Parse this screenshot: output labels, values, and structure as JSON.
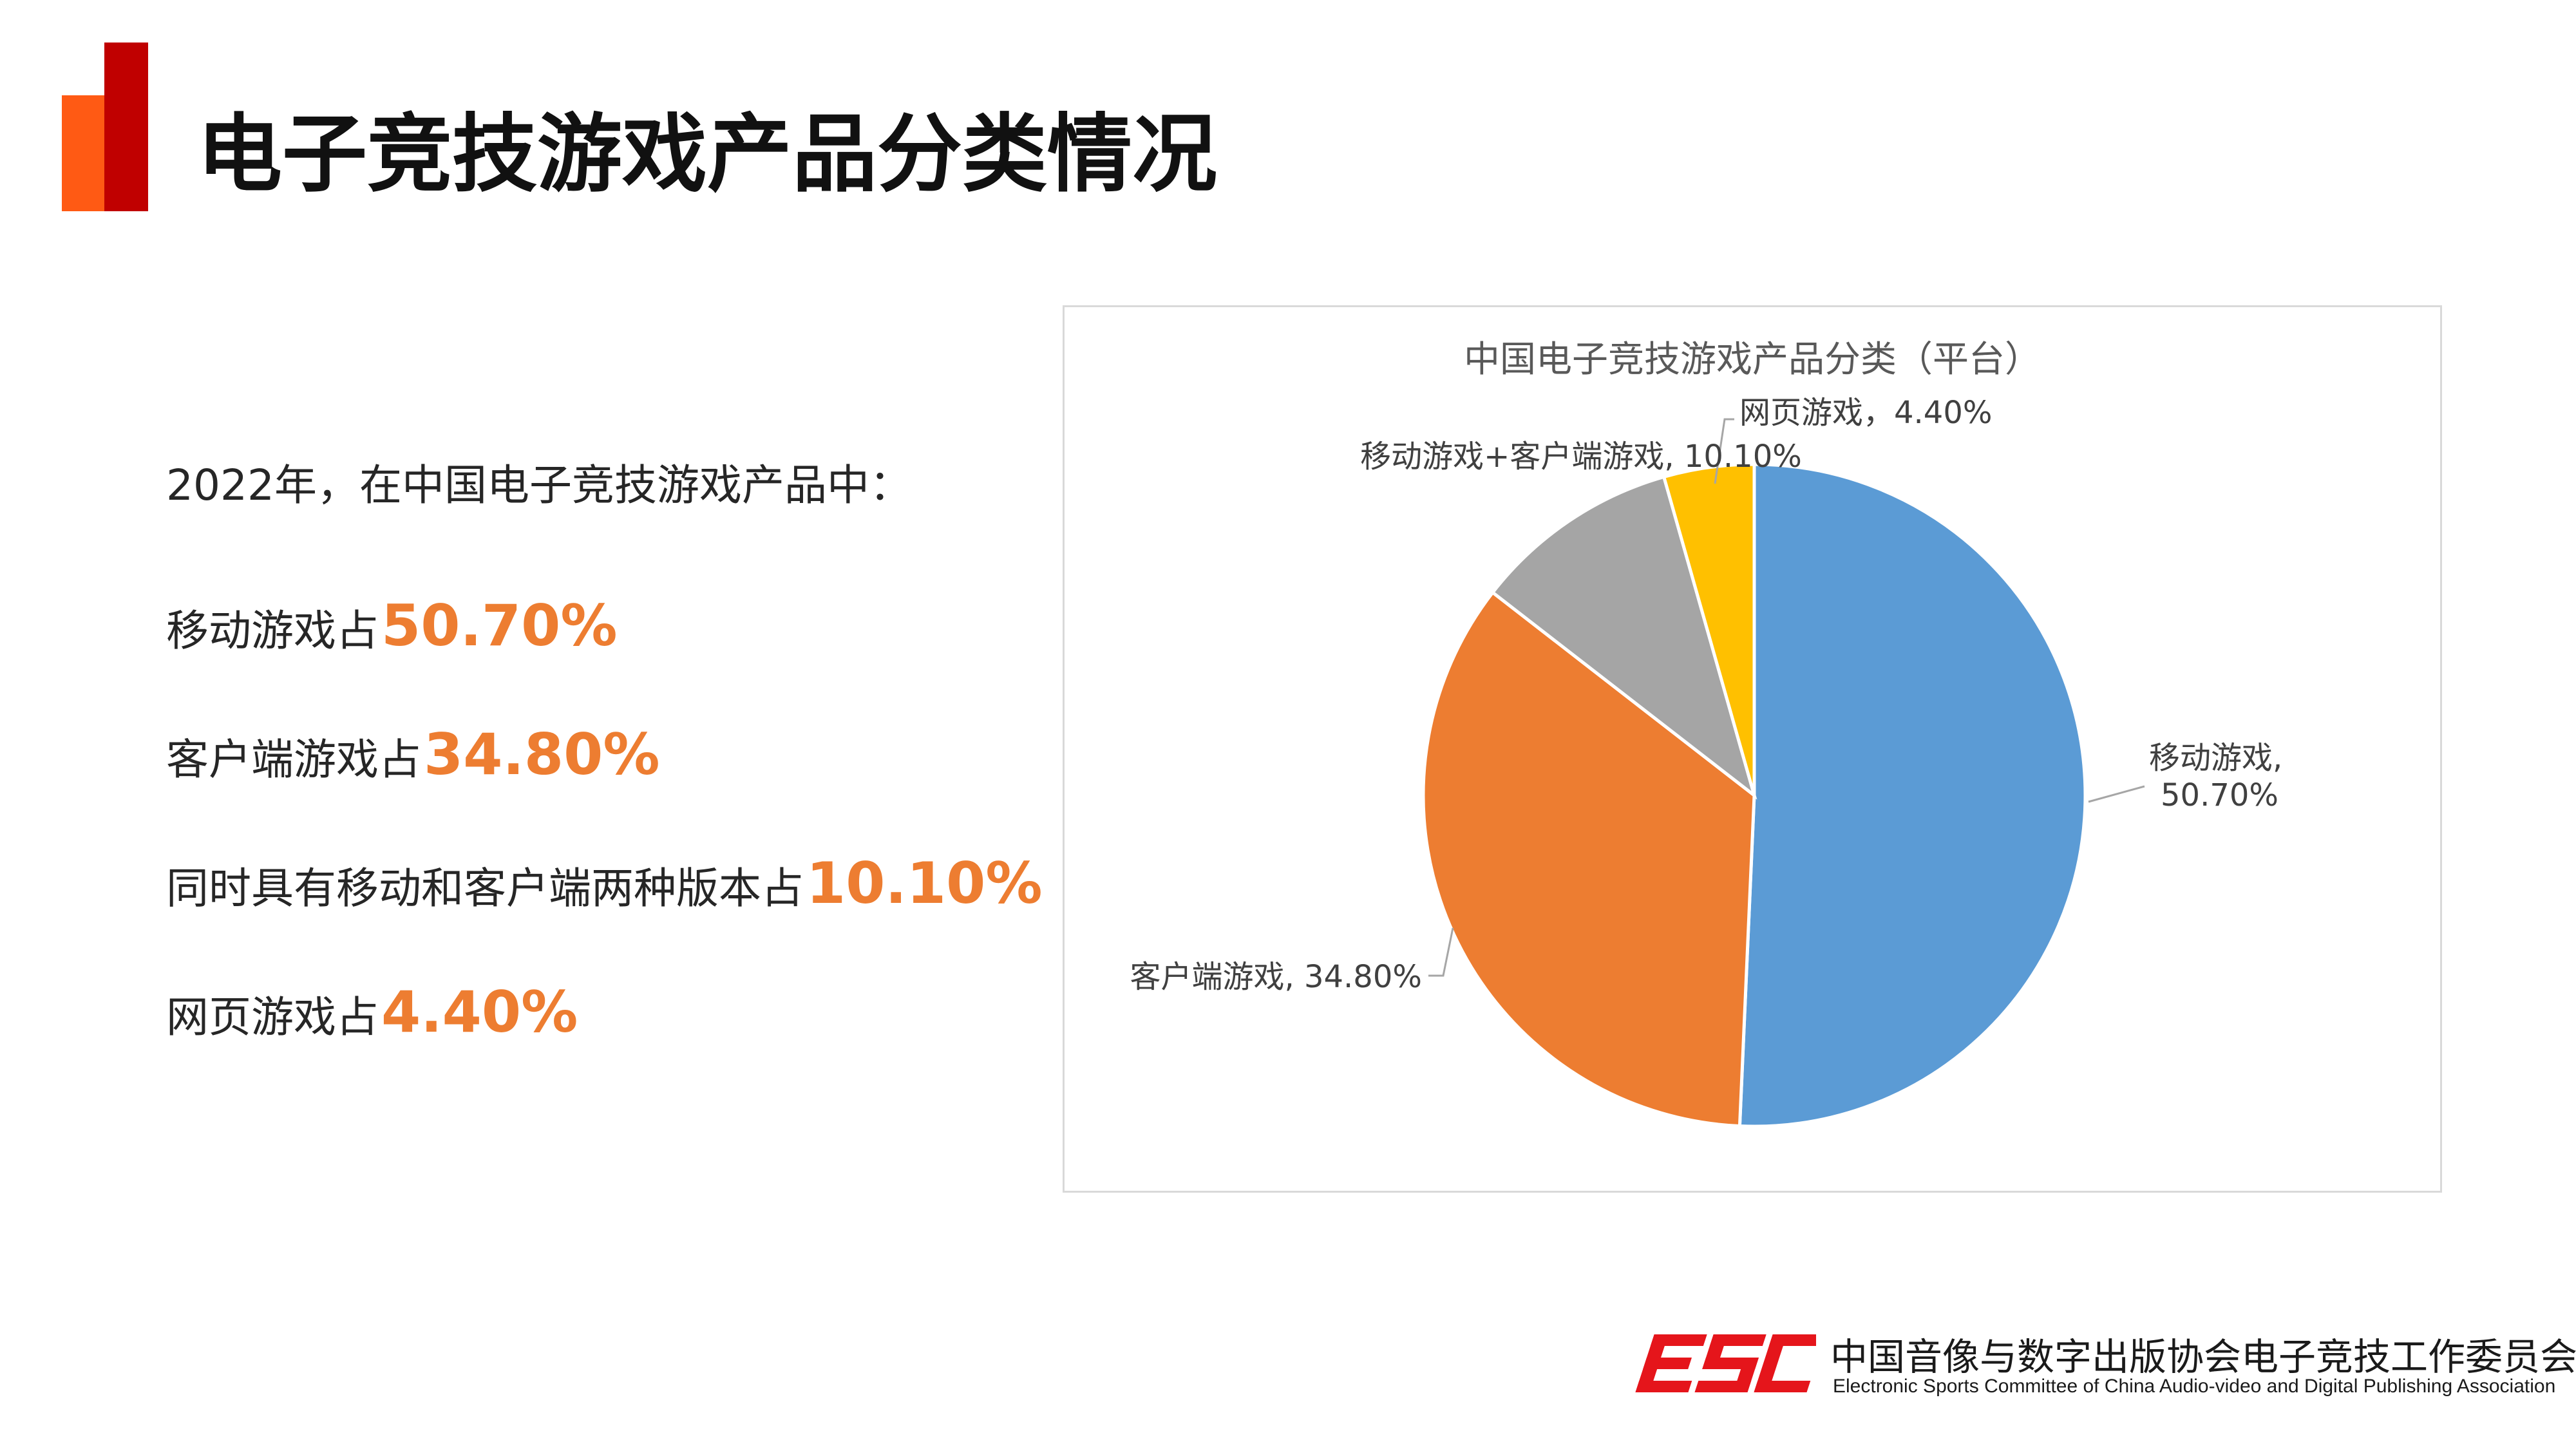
{
  "slide": {
    "title": "电子竞技游戏产品分类情况",
    "accent_colors": {
      "orange": "#FF5A14",
      "red": "#C00000",
      "highlight": "#ED7D31"
    }
  },
  "summary": {
    "intro": "2022年，在中国电子竞技游戏产品中：",
    "items": [
      {
        "label": "移动游戏占",
        "value": "50.70%"
      },
      {
        "label": "客户端游戏占",
        "value": "34.80%"
      },
      {
        "label": "同时具有移动和客户端两种版本占",
        "value": "10.10%"
      },
      {
        "label": "网页游戏占",
        "value": "4.40%"
      }
    ]
  },
  "chart_data": {
    "type": "pie",
    "title": "中国电子竞技游戏产品分类（平台）",
    "slices": [
      {
        "name": "移动游戏",
        "value": 50.7,
        "display": "50.70%",
        "color": "#5B9BD5"
      },
      {
        "name": "客户端游戏",
        "value": 34.8,
        "display": "34.80%",
        "color": "#ED7D31"
      },
      {
        "name": "移动游戏+客户端游戏",
        "value": 10.1,
        "display": "10.10%",
        "color": "#A5A5A5"
      },
      {
        "name": "网页游戏",
        "value": 4.4,
        "display": "4.40%",
        "color": "#FFC000"
      }
    ],
    "labels": [
      "移动游戏,",
      "50.70%",
      "客户端游戏, 34.80%",
      "移动游戏+客户端游戏, 10.10%",
      "网页游戏，4.40%"
    ],
    "legend": "none"
  },
  "footer": {
    "logo_text": "ESC",
    "org_name": "中国音像与数字出版协会电子竞技工作委员会",
    "org_name_en": "Electronic Sports Committee of China Audio-video and Digital Publishing Association",
    "brand_color": "#E5151B"
  }
}
